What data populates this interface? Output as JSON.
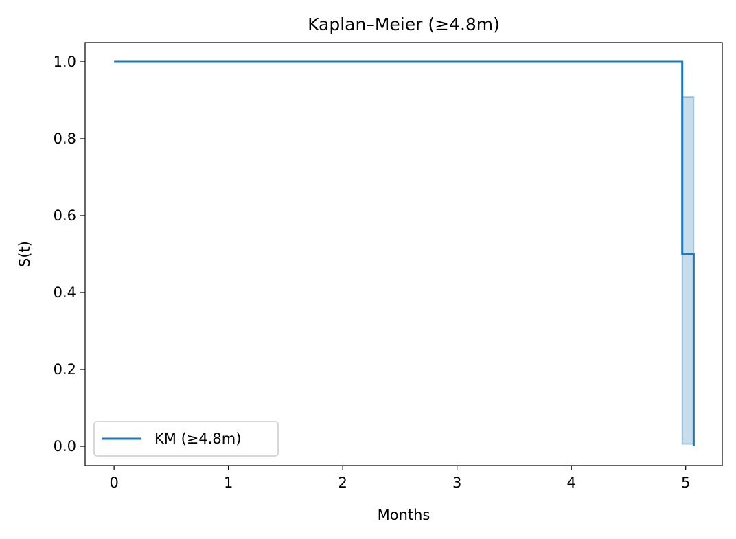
{
  "chart_data": {
    "type": "line",
    "title": "Kaplan–Meier (≥4.8m)",
    "xlabel": "Months",
    "ylabel": "S(t)",
    "xlim": [
      -0.253,
      5.32
    ],
    "ylim": [
      -0.05,
      1.05
    ],
    "xticks": [
      0,
      1,
      2,
      3,
      4,
      5
    ],
    "xtick_labels": [
      "0",
      "1",
      "2",
      "3",
      "4",
      "5"
    ],
    "yticks": [
      0.0,
      0.2,
      0.4,
      0.6,
      0.8,
      1.0
    ],
    "ytick_labels": [
      "0.0",
      "0.2",
      "0.4",
      "0.6",
      "0.8",
      "1.0"
    ],
    "grid": false,
    "legend_position": "lower-left",
    "series": [
      {
        "name": "KM (≥4.8m)",
        "color": "#1f77b4",
        "step": "post",
        "x": [
          0,
          4.97,
          4.97,
          5.07,
          5.07
        ],
        "y": [
          1.0,
          1.0,
          0.5,
          0.5,
          0.0
        ]
      }
    ],
    "confidence_band": {
      "color": "#1f77b4",
      "opacity": 0.25,
      "x": [
        4.97,
        5.07
      ],
      "lower": [
        0.006,
        0.006
      ],
      "upper": [
        0.909,
        0.909
      ]
    }
  }
}
